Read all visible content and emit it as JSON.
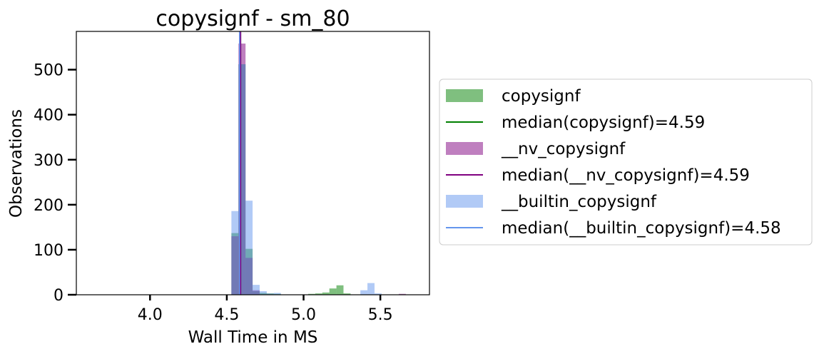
{
  "chart_data": {
    "type": "histogram",
    "title": "copysignf - sm_80",
    "xlabel": "Wall Time in MS",
    "ylabel": "Observations",
    "xlim": [
      3.52,
      5.82
    ],
    "ylim": [
      0,
      585
    ],
    "xticks": [
      4.0,
      4.5,
      5.0,
      5.5
    ],
    "xtick_labels": [
      "4.0",
      "4.5",
      "5.0",
      "5.5"
    ],
    "yticks": [
      0,
      100,
      200,
      300,
      400,
      500
    ],
    "ytick_labels": [
      "0",
      "100",
      "200",
      "300",
      "400",
      "500"
    ],
    "bin_width": 0.046,
    "grid": false,
    "legend_position": "outside-right",
    "series": [
      {
        "name": "copysignf",
        "color": "#008000",
        "opacity": 0.5,
        "bars": [
          {
            "x": 4.53,
            "y": 137
          },
          {
            "x": 4.576,
            "y": 512
          },
          {
            "x": 4.622,
            "y": 102
          },
          {
            "x": 4.668,
            "y": 8
          },
          {
            "x": 4.714,
            "y": 4
          },
          {
            "x": 4.76,
            "y": 3
          },
          {
            "x": 4.806,
            "y": 2
          },
          {
            "x": 5.03,
            "y": 2
          },
          {
            "x": 5.076,
            "y": 3
          },
          {
            "x": 5.122,
            "y": 5
          },
          {
            "x": 5.168,
            "y": 14
          },
          {
            "x": 5.214,
            "y": 21
          },
          {
            "x": 5.26,
            "y": 3
          }
        ],
        "median_label": "median(copysignf)=4.59",
        "median": 4.59,
        "median_color": "#008000"
      },
      {
        "name": "__nv_copysignf",
        "color": "#800080",
        "opacity": 0.5,
        "bars": [
          {
            "x": 4.53,
            "y": 130
          },
          {
            "x": 4.576,
            "y": 558
          },
          {
            "x": 4.622,
            "y": 82
          },
          {
            "x": 4.668,
            "y": 10
          },
          {
            "x": 5.62,
            "y": 2
          }
        ],
        "median_label": "median(__nv_copysignf)=4.59",
        "median": 4.59,
        "median_color": "#800080"
      },
      {
        "name": "__builtin_copysignf",
        "color": "#6495ED",
        "opacity": 0.5,
        "bars": [
          {
            "x": 4.53,
            "y": 186
          },
          {
            "x": 4.576,
            "y": 512
          },
          {
            "x": 4.622,
            "y": 209
          },
          {
            "x": 4.668,
            "y": 22
          },
          {
            "x": 4.714,
            "y": 8
          },
          {
            "x": 4.76,
            "y": 3
          },
          {
            "x": 4.806,
            "y": 4
          },
          {
            "x": 5.37,
            "y": 10
          },
          {
            "x": 5.416,
            "y": 26
          },
          {
            "x": 5.462,
            "y": 3
          }
        ],
        "median_label": "median(__builtin_copysignf)=4.58",
        "median": 4.583,
        "median_color": "#6495ED"
      }
    ]
  }
}
